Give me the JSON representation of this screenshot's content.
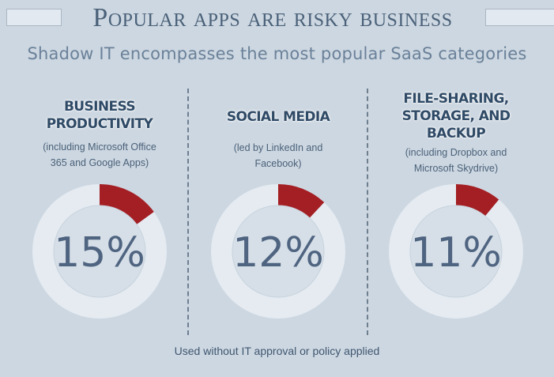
{
  "title": "Popular apps are risky business",
  "subtitle": "Shadow IT encompasses the most popular SaaS categories",
  "footer": "Used without IT approval or policy applied",
  "colors": {
    "background": "#cdd7e1",
    "ring": "#e5ebf1",
    "highlight": "#a31f24",
    "text": "#4a6179"
  },
  "chart_data": {
    "type": "pie",
    "title": "Popular apps are risky business",
    "subtitle": "Shadow IT encompasses the most popular SaaS categories",
    "annotation": "Used without IT approval or policy applied",
    "charts": [
      {
        "category": "BUSINESS\nPRODUCTIVITY",
        "note": "(including Microsoft Office\n365 and Google Apps)",
        "value": 15,
        "label": "15%"
      },
      {
        "category": "SOCIAL MEDIA",
        "note": "(led by LinkedIn and\nFacebook)",
        "value": 12,
        "label": "12%"
      },
      {
        "category": "FILE-SHARING,\nSTORAGE, AND\nBACKUP",
        "note": "(including Dropbox and\nMicrosoft Skydrive)",
        "value": 11,
        "label": "11%"
      }
    ]
  }
}
